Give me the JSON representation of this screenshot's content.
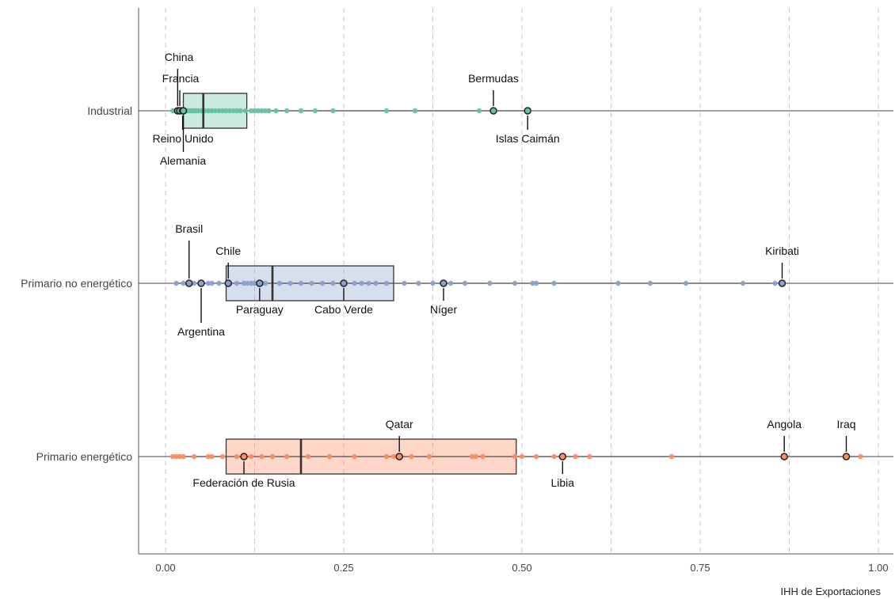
{
  "chart_data": {
    "type": "boxplot",
    "xlabel": "IHH de Exportaciones",
    "xlim": [
      0,
      1
    ],
    "xticks": [
      0,
      0.25,
      0.5,
      0.75,
      1
    ],
    "xtick_labels": [
      "0.00",
      "0.25",
      "0.50",
      "0.75",
      "1.00"
    ],
    "grid": "vertical dashed at 0.125 intervals",
    "series": [
      {
        "name": "Industrial",
        "color": "#66c2a5",
        "box": {
          "q1": 0.025,
          "median": 0.053,
          "q3": 0.114
        },
        "whiskers": [
          0.008,
          0.51
        ],
        "points": [
          0.01,
          0.013,
          0.015,
          0.017,
          0.02,
          0.022,
          0.025,
          0.027,
          0.03,
          0.032,
          0.035,
          0.037,
          0.04,
          0.043,
          0.046,
          0.05,
          0.055,
          0.06,
          0.065,
          0.07,
          0.075,
          0.08,
          0.085,
          0.09,
          0.095,
          0.1,
          0.105,
          0.112,
          0.12,
          0.125,
          0.13,
          0.135,
          0.14,
          0.145,
          0.155,
          0.17,
          0.19,
          0.21,
          0.235,
          0.31,
          0.35,
          0.44
        ],
        "highlighted": [
          {
            "label": "China",
            "x": 0.017
          },
          {
            "label": "Francia",
            "x": 0.02
          },
          {
            "label": "Reino Unido",
            "x": 0.024
          },
          {
            "label": "Alemania",
            "x": 0.025
          },
          {
            "label": "Bermudas",
            "x": 0.46
          },
          {
            "label": "Islas Caimán",
            "x": 0.508
          }
        ]
      },
      {
        "name": "Primario no energético",
        "color": "#8da0cb",
        "box": {
          "q1": 0.085,
          "median": 0.15,
          "q3": 0.32
        },
        "whiskers": [
          0.015,
          0.865
        ],
        "points": [
          0.015,
          0.025,
          0.04,
          0.06,
          0.065,
          0.075,
          0.09,
          0.1,
          0.11,
          0.115,
          0.12,
          0.125,
          0.135,
          0.14,
          0.16,
          0.175,
          0.19,
          0.205,
          0.22,
          0.235,
          0.265,
          0.275,
          0.285,
          0.295,
          0.31,
          0.335,
          0.355,
          0.375,
          0.4,
          0.42,
          0.455,
          0.49,
          0.515,
          0.52,
          0.545,
          0.635,
          0.68,
          0.73,
          0.81,
          0.855
        ],
        "highlighted": [
          {
            "label": "Brasil",
            "x": 0.033
          },
          {
            "label": "Argentina",
            "x": 0.05
          },
          {
            "label": "Chile",
            "x": 0.088
          },
          {
            "label": "Paraguay",
            "x": 0.132
          },
          {
            "label": "Cabo Verde",
            "x": 0.25
          },
          {
            "label": "Níger",
            "x": 0.39
          },
          {
            "label": "Kiribati",
            "x": 0.865
          }
        ]
      },
      {
        "name": "Primario energético",
        "color": "#fc8d62",
        "box": {
          "q1": 0.085,
          "median": 0.19,
          "q3": 0.492
        },
        "whiskers": [
          0.01,
          0.975
        ],
        "points": [
          0.01,
          0.015,
          0.02,
          0.025,
          0.04,
          0.06,
          0.065,
          0.08,
          0.1,
          0.12,
          0.135,
          0.15,
          0.17,
          0.2,
          0.23,
          0.265,
          0.31,
          0.32,
          0.345,
          0.37,
          0.43,
          0.435,
          0.445,
          0.49,
          0.5,
          0.52,
          0.545,
          0.575,
          0.595,
          0.71,
          0.975
        ],
        "highlighted": [
          {
            "label": "Federación de Rusia",
            "x": 0.11
          },
          {
            "label": "Qatar",
            "x": 0.328
          },
          {
            "label": "Libia",
            "x": 0.557
          },
          {
            "label": "Angola",
            "x": 0.868
          },
          {
            "label": "Iraq",
            "x": 0.955
          }
        ]
      }
    ]
  }
}
